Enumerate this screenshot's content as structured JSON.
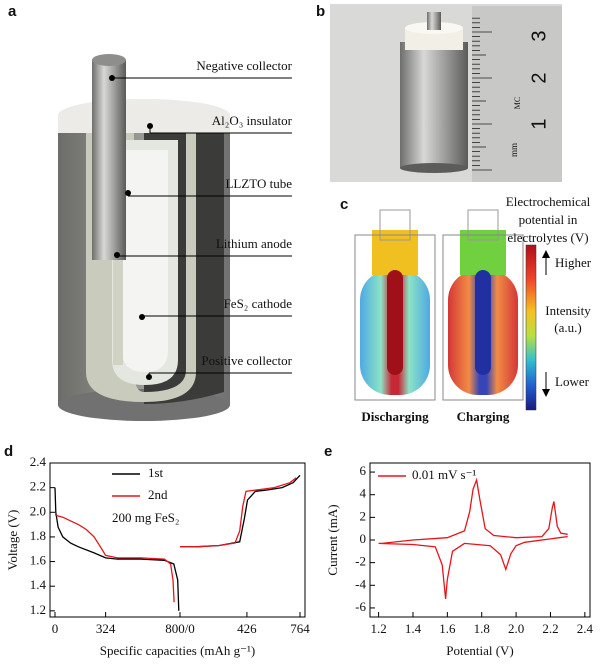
{
  "panels": {
    "a": {
      "label": "a",
      "callouts": [
        "Negative collector",
        "Al₂O₃ insulator",
        "LLZTO tube",
        "Lithium anode",
        "FeS₂ cathode",
        "Positive collector"
      ]
    },
    "b": {
      "label": "b",
      "ruler_labels": [
        "1",
        "2",
        "3"
      ],
      "ruler_unit": "mm",
      "ruler_logo": "MC"
    },
    "c": {
      "label": "c",
      "legend_title": [
        "Electrochemical",
        "potential in",
        "electrolytes (V)"
      ],
      "high": "Higher",
      "intensity": [
        "Intensity",
        "(a.u.)"
      ],
      "low": "Lower",
      "captions": [
        "Discharging",
        "Charging"
      ]
    },
    "d": {
      "label": "d"
    },
    "e": {
      "label": "e"
    }
  },
  "chart_data": [
    {
      "type": "line",
      "panel": "d",
      "xlabel": "Specific capacities (mAh g⁻¹)",
      "ylabel": "Voltage (V)",
      "annotation": "200 mg FeS₂",
      "ylim": [
        1.15,
        2.4
      ],
      "yticks": [
        1.2,
        1.4,
        1.6,
        1.8,
        {
          "value": 2.0,
          "label": "2.0"
        },
        2.2,
        2.4
      ],
      "discharge_xlim": [
        0,
        800
      ],
      "charge_xlim": [
        0,
        764
      ],
      "discharge_xticks": [
        0,
        324,
        {
          "value": 800,
          "label": "800/0"
        }
      ],
      "charge_xticks": [
        426,
        764
      ],
      "series": [
        {
          "name": "1st",
          "color": "#000000",
          "discharge": {
            "x": [
              0,
              5,
              20,
              50,
              100,
              150,
              250,
              324,
              400,
              550,
              700,
              760,
              785,
              792
            ],
            "values": [
              2.2,
              2.0,
              1.88,
              1.8,
              1.75,
              1.72,
              1.67,
              1.63,
              1.62,
              1.62,
              1.61,
              1.58,
              1.45,
              1.2
            ]
          },
          "charge": {
            "x": [
              0,
              5,
              100,
              250,
              380,
              410,
              430,
              480,
              550,
              650,
              720,
              764
            ],
            "values": [
              1.72,
              1.72,
              1.72,
              1.73,
              1.76,
              1.95,
              2.1,
              2.17,
              2.18,
              2.2,
              2.24,
              2.3
            ]
          }
        },
        {
          "name": "2nd",
          "color": "#e8141b",
          "discharge": {
            "x": [
              0,
              20,
              50,
              100,
              150,
              200,
              250,
              300,
              324,
              400,
              550,
              700,
              740,
              755,
              762
            ],
            "values": [
              1.98,
              1.97,
              1.96,
              1.93,
              1.9,
              1.86,
              1.8,
              1.7,
              1.65,
              1.63,
              1.63,
              1.62,
              1.58,
              1.45,
              1.27
            ]
          },
          "charge": {
            "x": [
              0,
              5,
              100,
              250,
              350,
              380,
              400,
              420,
              480,
              600,
              700,
              740
            ],
            "values": [
              1.72,
              1.72,
              1.72,
              1.73,
              1.75,
              1.85,
              2.05,
              2.17,
              2.18,
              2.2,
              2.24,
              2.28
            ]
          }
        }
      ]
    },
    {
      "type": "line",
      "panel": "e",
      "xlabel": "Potential (V)",
      "ylabel": "Current (mA)",
      "xlim": [
        1.15,
        2.43
      ],
      "ylim": [
        -6.8,
        6.8
      ],
      "xticks": [
        1.2,
        1.4,
        1.6,
        1.8,
        {
          "value": 2.0,
          "label": "2.0"
        },
        2.2,
        2.4
      ],
      "yticks": [
        -6,
        -4,
        -2,
        0,
        2,
        4,
        6
      ],
      "series": [
        {
          "name": "0.01 mV s⁻¹",
          "color": "#e8141b",
          "x": [
            2.3,
            2.25,
            2.2,
            2.05,
            2.0,
            1.97,
            1.94,
            1.91,
            1.85,
            1.7,
            1.63,
            1.6,
            1.59,
            1.57,
            1.53,
            1.4,
            1.2,
            1.22,
            1.4,
            1.6,
            1.7,
            1.73,
            1.75,
            1.77,
            1.79,
            1.82,
            1.87,
            2.0,
            2.15,
            2.19,
            2.21,
            2.22,
            2.24,
            2.26,
            2.3
          ],
          "values": [
            0.3,
            0.2,
            0.1,
            -0.2,
            -0.5,
            -1.2,
            -2.6,
            -1.3,
            -0.5,
            -0.3,
            -1.0,
            -3.5,
            -5.2,
            -2.2,
            -0.6,
            -0.4,
            -0.3,
            -0.3,
            0.0,
            0.2,
            0.8,
            2.5,
            4.5,
            5.3,
            3.5,
            1.0,
            0.4,
            0.2,
            0.3,
            1.0,
            2.8,
            3.4,
            1.2,
            0.6,
            0.5
          ]
        }
      ]
    }
  ]
}
